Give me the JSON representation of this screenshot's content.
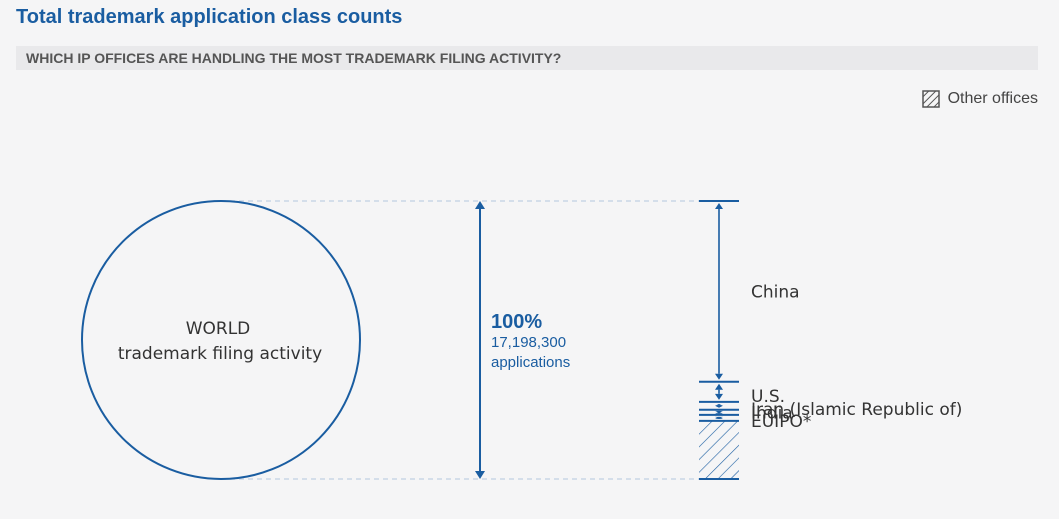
{
  "header": {
    "title": "Total trademark application class counts",
    "subtitle": "WHICH IP OFFICES ARE HANDLING THE MOST TRADEMARK FILING ACTIVITY?"
  },
  "legend": {
    "other_label": "Other offices",
    "other_icon": "hatched-square-icon"
  },
  "colors": {
    "accent": "#1a5da1",
    "guide": "#c9d6e6"
  },
  "chart_data": {
    "type": "stacked-bar",
    "world": {
      "label_line1": "WORLD",
      "label_line2": "trademark filing activity",
      "percent_label": "100%",
      "count_label": "17,198,300",
      "unit_label": "applications",
      "total": 17198300
    },
    "segments": [
      {
        "name": "China",
        "share": 0.65
      },
      {
        "name": "U.S.",
        "share": 0.0725
      },
      {
        "name": "Iran (Islamic Republic of)",
        "share": 0.0285
      },
      {
        "name": "India",
        "share": 0.0185
      },
      {
        "name": "EUIPO*",
        "share": 0.0215
      },
      {
        "name": "Other offices",
        "share": 0.209,
        "hatched": true
      }
    ]
  }
}
